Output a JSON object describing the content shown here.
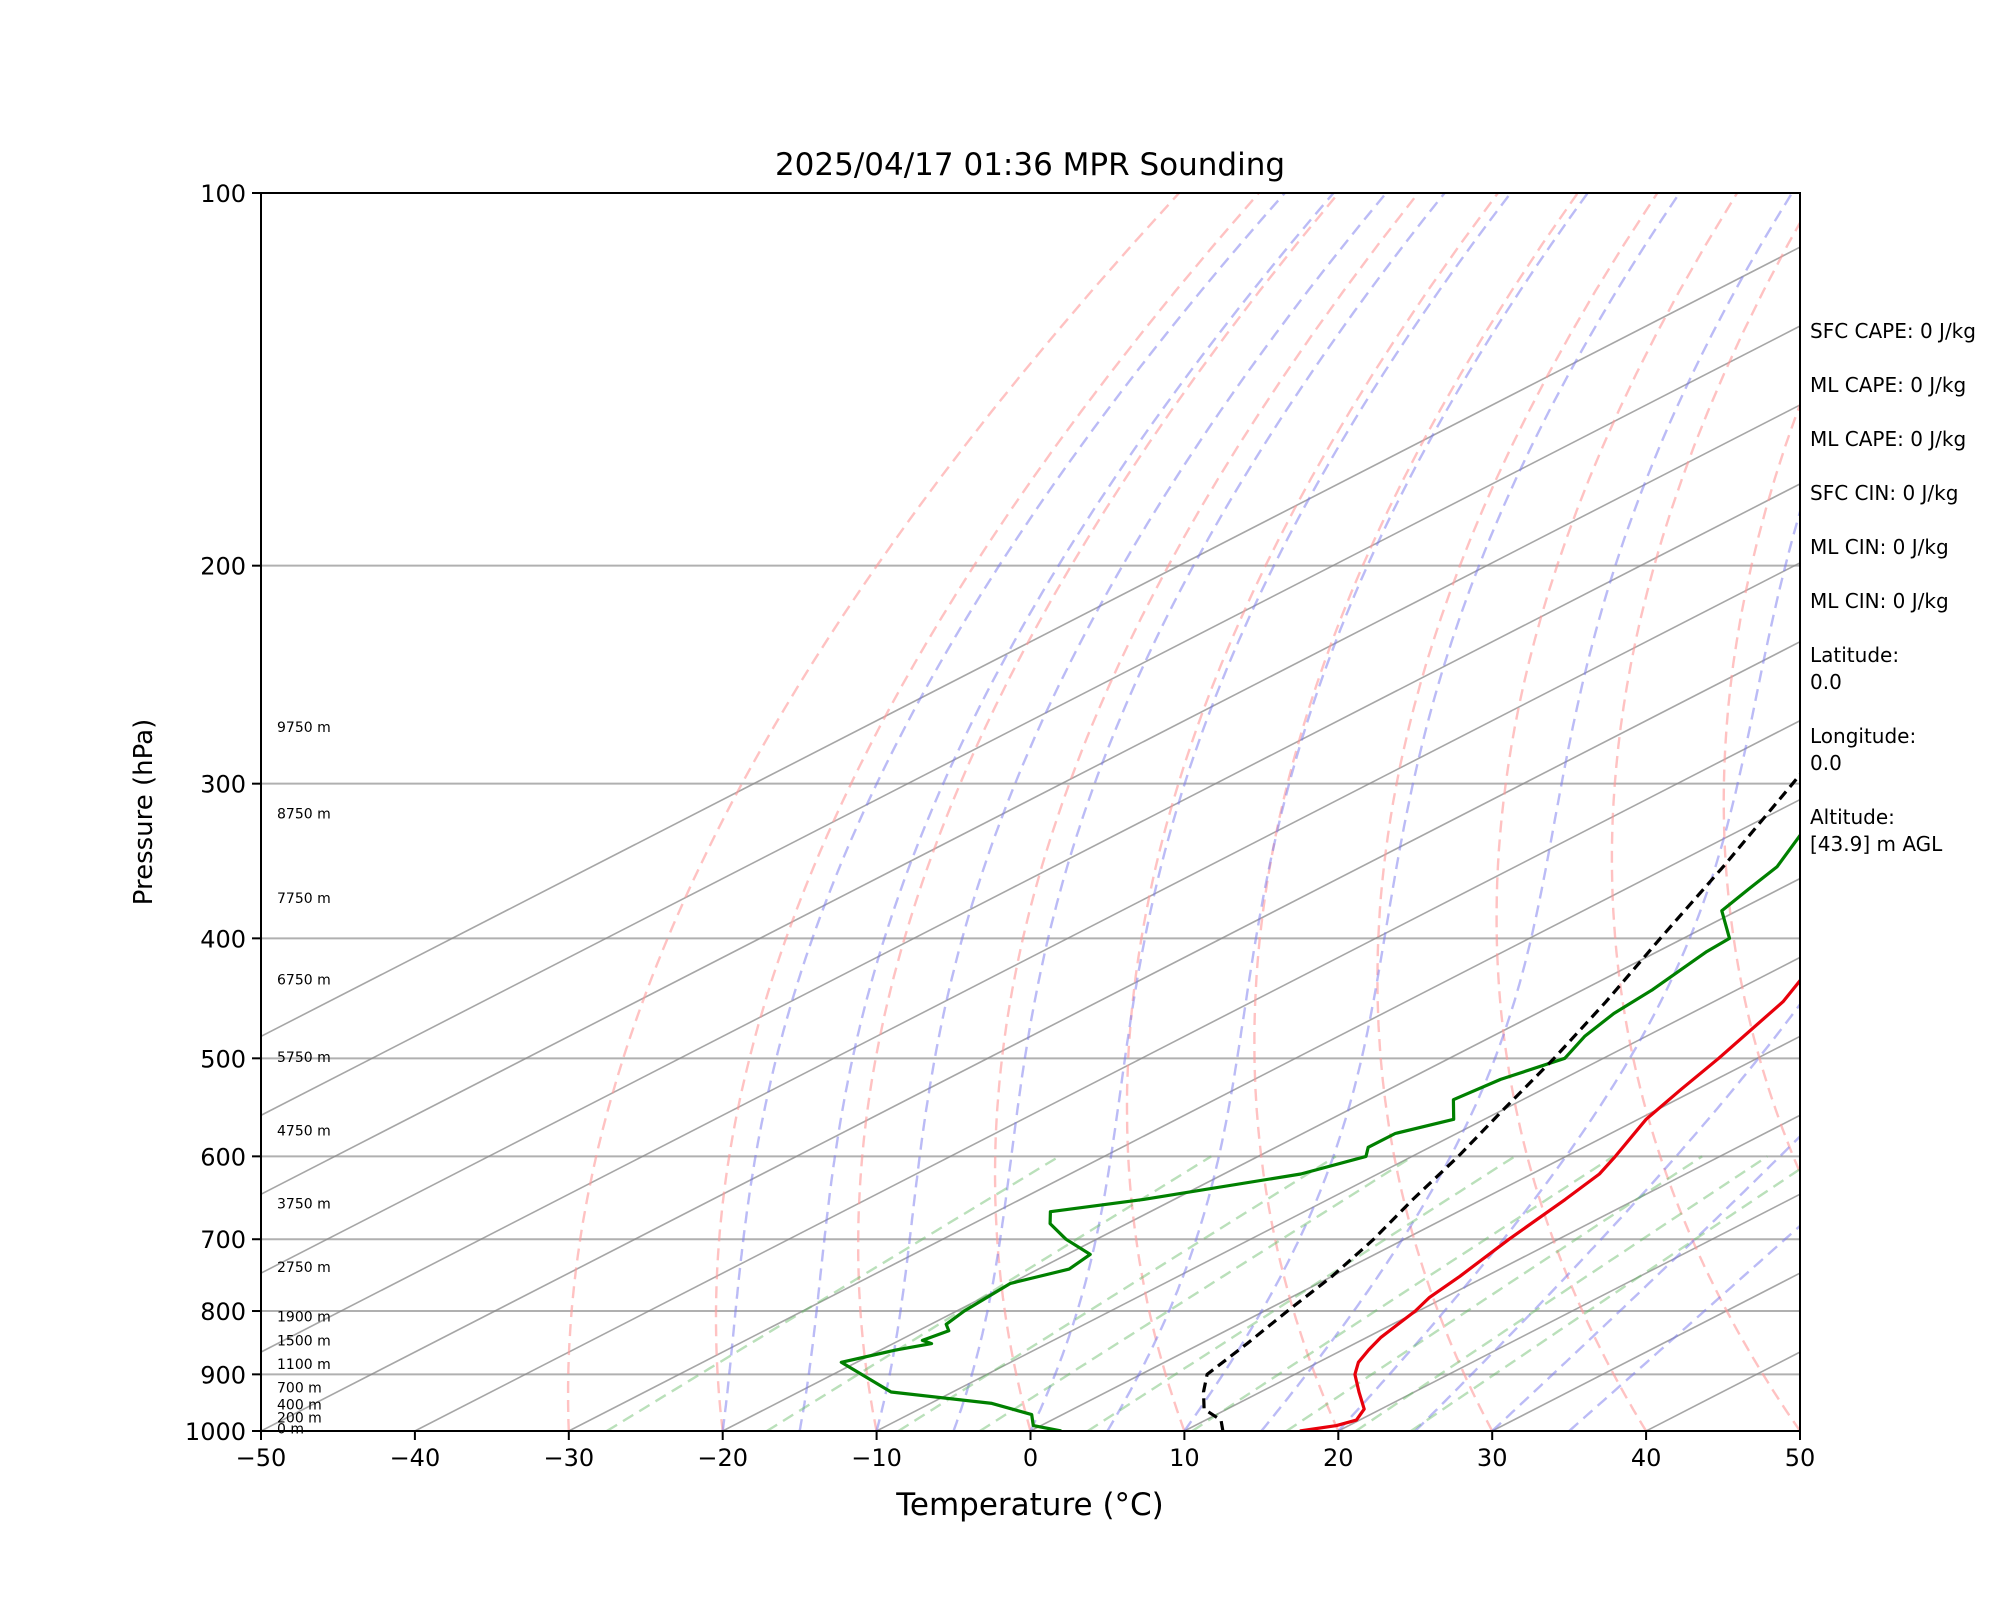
{
  "chart_data": {
    "type": "line",
    "chart_kind": "skew-T log-P sounding",
    "title": "2025/04/17 01:36 MPR Sounding",
    "xlabel": "Temperature (°C)",
    "ylabel": "Pressure (hPa)",
    "xlim": [
      -50,
      50
    ],
    "ylim": [
      1000,
      100
    ],
    "y_scale": "log",
    "x_ticks": [
      -50,
      -40,
      -30,
      -20,
      -10,
      0,
      10,
      20,
      30,
      40,
      50
    ],
    "x_tick_labels": [
      "−50",
      "−40",
      "−30",
      "−20",
      "−10",
      "0",
      "10",
      "20",
      "30",
      "40",
      "50"
    ],
    "y_ticks": [
      100,
      200,
      300,
      400,
      500,
      600,
      700,
      800,
      900,
      1000
    ],
    "y_tick_labels": [
      "100",
      "200",
      "300",
      "400",
      "500",
      "600",
      "700",
      "800",
      "900",
      "1000"
    ],
    "grid": true,
    "series": [
      {
        "role": "temperature",
        "color": "#e8000b",
        "points": [
          [
            1000,
            17.5
          ],
          [
            990,
            19.2
          ],
          [
            980,
            19.8
          ],
          [
            960,
            18.9
          ],
          [
            930,
            16.4
          ],
          [
            900,
            13.9
          ],
          [
            880,
            12.6
          ],
          [
            860,
            11.7
          ],
          [
            840,
            10.9
          ],
          [
            800,
            9.8
          ],
          [
            780,
            9.0
          ],
          [
            750,
            8.3
          ],
          [
            700,
            6.8
          ],
          [
            650,
            5.4
          ],
          [
            620,
            4.4
          ],
          [
            600,
            3.2
          ],
          [
            560,
            0.5
          ],
          [
            530,
            -1.0
          ],
          [
            500,
            -2.5
          ],
          [
            450,
            -5.5
          ],
          [
            400,
            -10.2
          ],
          [
            370,
            -13.8
          ],
          [
            340,
            -16.7
          ],
          [
            300,
            -21.0
          ],
          [
            285,
            -22.0
          ],
          [
            275,
            -22.8
          ]
        ]
      },
      {
        "role": "dewpoint",
        "color": "#008000",
        "points": [
          [
            1000,
            2.0
          ],
          [
            990,
            -0.5
          ],
          [
            970,
            -2.0
          ],
          [
            950,
            -6.0
          ],
          [
            930,
            -14.0
          ],
          [
            880,
            -21.0
          ],
          [
            860,
            -19.0
          ],
          [
            850,
            -17.5
          ],
          [
            845,
            -18.5
          ],
          [
            830,
            -18.0
          ],
          [
            820,
            -19.0
          ],
          [
            800,
            -19.5
          ],
          [
            760,
            -20.0
          ],
          [
            740,
            -18.0
          ],
          [
            720,
            -18.5
          ],
          [
            700,
            -22.0
          ],
          [
            680,
            -25.0
          ],
          [
            665,
            -26.5
          ],
          [
            650,
            -22.0
          ],
          [
            620,
            -15.0
          ],
          [
            600,
            -13.0
          ],
          [
            590,
            -14.0
          ],
          [
            575,
            -14.0
          ],
          [
            560,
            -12.0
          ],
          [
            540,
            -14.5
          ],
          [
            520,
            -14.0
          ],
          [
            500,
            -12.5
          ],
          [
            480,
            -14.0
          ],
          [
            460,
            -15.0
          ],
          [
            440,
            -15.5
          ],
          [
            410,
            -16.8
          ],
          [
            400,
            -17.0
          ],
          [
            380,
            -21.0
          ],
          [
            365,
            -22.0
          ],
          [
            350,
            -23.0
          ],
          [
            330,
            -25.5
          ],
          [
            315,
            -27.0
          ],
          [
            300,
            -28.5
          ],
          [
            290,
            -30.0
          ],
          [
            280,
            -29.0
          ],
          [
            270,
            -30.0
          ]
        ]
      },
      {
        "role": "parcel",
        "color": "#000000",
        "dashed": true,
        "points": [
          [
            1000,
            12.5
          ],
          [
            980,
            11.0
          ],
          [
            960,
            8.5
          ],
          [
            930,
            6.3
          ],
          [
            900,
            4.3
          ],
          [
            850,
            3.0
          ],
          [
            800,
            1.5
          ],
          [
            750,
            0.0
          ],
          [
            700,
            -2.0
          ],
          [
            650,
            -4.5
          ],
          [
            600,
            -7.0
          ],
          [
            550,
            -10.0
          ],
          [
            500,
            -13.2
          ],
          [
            450,
            -17.0
          ],
          [
            400,
            -21.5
          ],
          [
            350,
            -26.5
          ],
          [
            300,
            -32.5
          ],
          [
            275,
            -36.0
          ]
        ]
      }
    ],
    "background_lines": [
      {
        "role": "isotherms",
        "color": "#888888",
        "values": [
          -100,
          -90,
          -80,
          -70,
          -60,
          -50,
          -40,
          -30,
          -20,
          -10,
          0,
          10,
          20,
          30,
          40,
          50
        ]
      },
      {
        "role": "dry adiabats",
        "color": "#ff9999",
        "values": [
          -30,
          -20,
          -10,
          0,
          10,
          20,
          30,
          40,
          50,
          60,
          70,
          80,
          90,
          100,
          110
        ]
      },
      {
        "role": "moist adiabats",
        "color": "#7777ee",
        "values": [
          -20,
          -15,
          -10,
          -5,
          0,
          5,
          10,
          15,
          20,
          25,
          30,
          35
        ]
      },
      {
        "role": "mixing ratio",
        "color": "#66bb66",
        "values": [
          0.4,
          1,
          2,
          3,
          5,
          8,
          12,
          16,
          20
        ]
      }
    ],
    "height_labels": [
      {
        "text": "0 m",
        "pressure": 995
      },
      {
        "text": "200 m",
        "pressure": 975
      },
      {
        "text": "400 m",
        "pressure": 952
      },
      {
        "text": "700 m",
        "pressure": 922
      },
      {
        "text": "1100 m",
        "pressure": 883
      },
      {
        "text": "1500 m",
        "pressure": 845
      },
      {
        "text": "1900 m",
        "pressure": 808
      },
      {
        "text": "2750 m",
        "pressure": 737
      },
      {
        "text": "3750 m",
        "pressure": 655
      },
      {
        "text": "4750 m",
        "pressure": 572
      },
      {
        "text": "5750 m",
        "pressure": 499
      },
      {
        "text": "6750 m",
        "pressure": 432
      },
      {
        "text": "7750 m",
        "pressure": 371
      },
      {
        "text": "8750 m",
        "pressure": 317
      },
      {
        "text": "9750 m",
        "pressure": 270
      }
    ]
  },
  "side_panel": {
    "sfc_cape": "SFC CAPE: 0 J/kg",
    "ml_cape_1": "ML CAPE: 0 J/kg",
    "ml_cape_2": "ML CAPE: 0 J/kg",
    "sfc_cin": "SFC CIN: 0 J/kg",
    "ml_cin_1": "ML CIN: 0 J/kg",
    "ml_cin_2": "ML CIN: 0 J/kg",
    "latitude_label": "Latitude:",
    "latitude_value": "0.0",
    "longitude_label": "Longitude:",
    "longitude_value": "0.0",
    "altitude_label": "Altitude:",
    "altitude_value": "[43.9] m AGL"
  }
}
